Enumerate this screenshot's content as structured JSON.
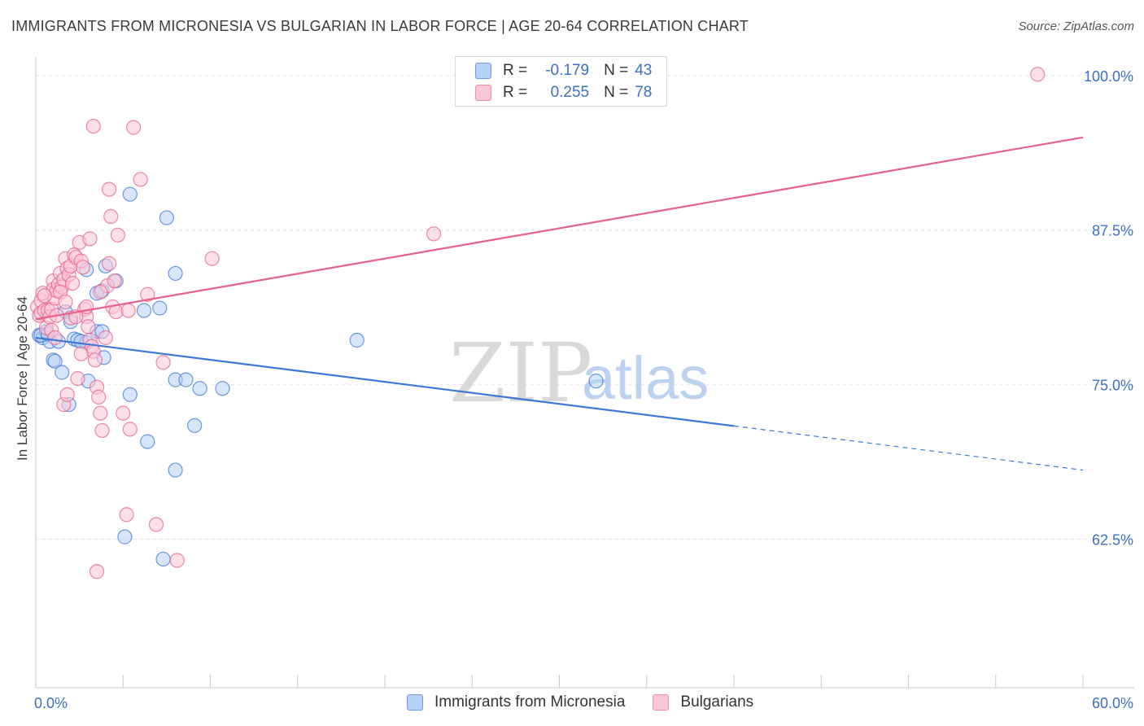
{
  "title": "IMMIGRANTS FROM MICRONESIA VS BULGARIAN IN LABOR FORCE | AGE 20-64 CORRELATION CHART",
  "source": "Source: ZipAtlas.com",
  "watermark": {
    "zip": "ZIP",
    "atlas": "atlas"
  },
  "legend": {
    "r_label": "R =",
    "n_label": "N =",
    "blue": {
      "r": "-0.179",
      "n": "43"
    },
    "pink": {
      "r": "0.255",
      "n": "78"
    }
  },
  "colors": {
    "blue": "#3d78d8",
    "blue_fill": "#b7d1f5",
    "pink": "#e8608e",
    "pink_fill": "#f9c6d6",
    "tick_text": "#3d6fc4",
    "grid": "#e3e3e3"
  },
  "chart_data": {
    "type": "scatter",
    "title": "IMMIGRANTS FROM MICRONESIA VS BULGARIAN IN LABOR FORCE | AGE 20-64 CORRELATION CHART",
    "xlabel": "",
    "ylabel": "In Labor Force | Age 20-64",
    "xlim": [
      0,
      60
    ],
    "ylim": [
      50.5,
      101.5
    ],
    "x_tick_labels": [
      {
        "value": 0,
        "label": "0.0%"
      },
      {
        "value": 60,
        "label": "60.0%"
      }
    ],
    "y_ticks": [
      {
        "value": 100,
        "label": "100.0%"
      },
      {
        "value": 87.5,
        "label": "87.5%"
      },
      {
        "value": 75,
        "label": "75.0%"
      },
      {
        "value": 62.5,
        "label": "62.5%"
      }
    ],
    "grid": true,
    "series": [
      {
        "name": "Immigrants from Micronesia",
        "color": "blue",
        "points": [
          [
            0.2,
            79.0
          ],
          [
            0.4,
            78.8
          ],
          [
            0.6,
            79.3
          ],
          [
            0.8,
            78.5
          ],
          [
            1.0,
            77.0
          ],
          [
            1.1,
            76.9
          ],
          [
            1.5,
            76.0
          ],
          [
            1.7,
            80.9
          ],
          [
            2.0,
            80.1
          ],
          [
            2.2,
            78.7
          ],
          [
            2.4,
            78.6
          ],
          [
            2.9,
            84.3
          ],
          [
            2.9,
            78.4
          ],
          [
            3.0,
            75.3
          ],
          [
            3.5,
            82.4
          ],
          [
            3.8,
            82.6
          ],
          [
            3.5,
            79.3
          ],
          [
            3.8,
            79.3
          ],
          [
            4.0,
            84.6
          ],
          [
            4.6,
            83.4
          ],
          [
            1.9,
            73.4
          ],
          [
            5.4,
            90.4
          ],
          [
            5.4,
            74.2
          ],
          [
            6.2,
            81.0
          ],
          [
            6.4,
            70.4
          ],
          [
            7.1,
            81.2
          ],
          [
            7.5,
            88.5
          ],
          [
            8.0,
            84.0
          ],
          [
            8.0,
            75.4
          ],
          [
            8.0,
            68.1
          ],
          [
            8.6,
            75.4
          ],
          [
            9.1,
            71.7
          ],
          [
            9.4,
            74.7
          ],
          [
            10.7,
            74.7
          ],
          [
            5.1,
            62.7
          ],
          [
            7.3,
            60.9
          ],
          [
            18.4,
            78.6
          ],
          [
            32.1,
            75.3
          ],
          [
            0.3,
            79.0
          ],
          [
            0.7,
            79.1
          ],
          [
            1.3,
            78.5
          ],
          [
            2.6,
            78.5
          ],
          [
            3.9,
            77.2
          ]
        ]
      },
      {
        "name": "Bulgarians",
        "color": "pink",
        "points": [
          [
            0.1,
            81.3
          ],
          [
            0.2,
            80.6
          ],
          [
            0.3,
            81.8
          ],
          [
            0.3,
            80.8
          ],
          [
            0.4,
            82.4
          ],
          [
            0.5,
            81.0
          ],
          [
            0.6,
            79.6
          ],
          [
            0.7,
            81.0
          ],
          [
            0.8,
            80.5
          ],
          [
            0.9,
            81.1
          ],
          [
            1.0,
            83.4
          ],
          [
            1.0,
            82.7
          ],
          [
            1.1,
            82.0
          ],
          [
            1.2,
            82.6
          ],
          [
            1.2,
            80.6
          ],
          [
            1.3,
            83.1
          ],
          [
            1.4,
            84.0
          ],
          [
            1.5,
            82.9
          ],
          [
            1.6,
            83.5
          ],
          [
            1.7,
            85.2
          ],
          [
            1.8,
            84.4
          ],
          [
            1.9,
            83.9
          ],
          [
            2.0,
            84.6
          ],
          [
            2.1,
            83.2
          ],
          [
            2.2,
            85.5
          ],
          [
            2.3,
            85.3
          ],
          [
            2.5,
            86.5
          ],
          [
            2.6,
            85.0
          ],
          [
            2.7,
            84.5
          ],
          [
            2.8,
            81.1
          ],
          [
            2.9,
            80.5
          ],
          [
            3.0,
            79.7
          ],
          [
            3.1,
            78.6
          ],
          [
            3.2,
            78.1
          ],
          [
            3.3,
            77.7
          ],
          [
            3.4,
            77.0
          ],
          [
            3.5,
            74.8
          ],
          [
            3.6,
            74.0
          ],
          [
            3.7,
            72.7
          ],
          [
            3.8,
            71.3
          ],
          [
            4.0,
            78.8
          ],
          [
            4.1,
            83.0
          ],
          [
            4.2,
            84.8
          ],
          [
            4.3,
            88.6
          ],
          [
            4.4,
            81.3
          ],
          [
            4.5,
            83.4
          ],
          [
            4.6,
            80.9
          ],
          [
            4.7,
            87.1
          ],
          [
            5.0,
            72.7
          ],
          [
            5.2,
            64.5
          ],
          [
            5.4,
            71.4
          ],
          [
            5.6,
            95.8
          ],
          [
            6.0,
            91.6
          ],
          [
            6.4,
            82.3
          ],
          [
            6.9,
            63.7
          ],
          [
            7.3,
            76.8
          ],
          [
            8.1,
            60.8
          ],
          [
            10.1,
            85.2
          ],
          [
            4.2,
            90.8
          ],
          [
            3.3,
            95.9
          ],
          [
            1.6,
            73.4
          ],
          [
            1.8,
            74.2
          ],
          [
            2.4,
            75.5
          ],
          [
            2.6,
            77.5
          ],
          [
            2.9,
            81.3
          ],
          [
            3.1,
            86.8
          ],
          [
            3.5,
            59.9
          ],
          [
            5.3,
            81.0
          ],
          [
            0.5,
            82.2
          ],
          [
            0.9,
            79.4
          ],
          [
            1.4,
            82.5
          ],
          [
            2.0,
            80.4
          ],
          [
            3.7,
            82.5
          ],
          [
            22.8,
            87.2
          ],
          [
            57.4,
            100.1
          ],
          [
            1.1,
            78.8
          ],
          [
            1.7,
            81.7
          ],
          [
            2.3,
            80.5
          ]
        ]
      }
    ],
    "trend_lines": [
      {
        "series": "Immigrants from Micronesia",
        "from": [
          0,
          78.8
        ],
        "to": [
          60,
          68.1
        ],
        "solid_until_x": 40.0
      },
      {
        "series": "Bulgarians",
        "from": [
          0,
          80.3
        ],
        "to": [
          60,
          95.0
        ]
      }
    ]
  }
}
